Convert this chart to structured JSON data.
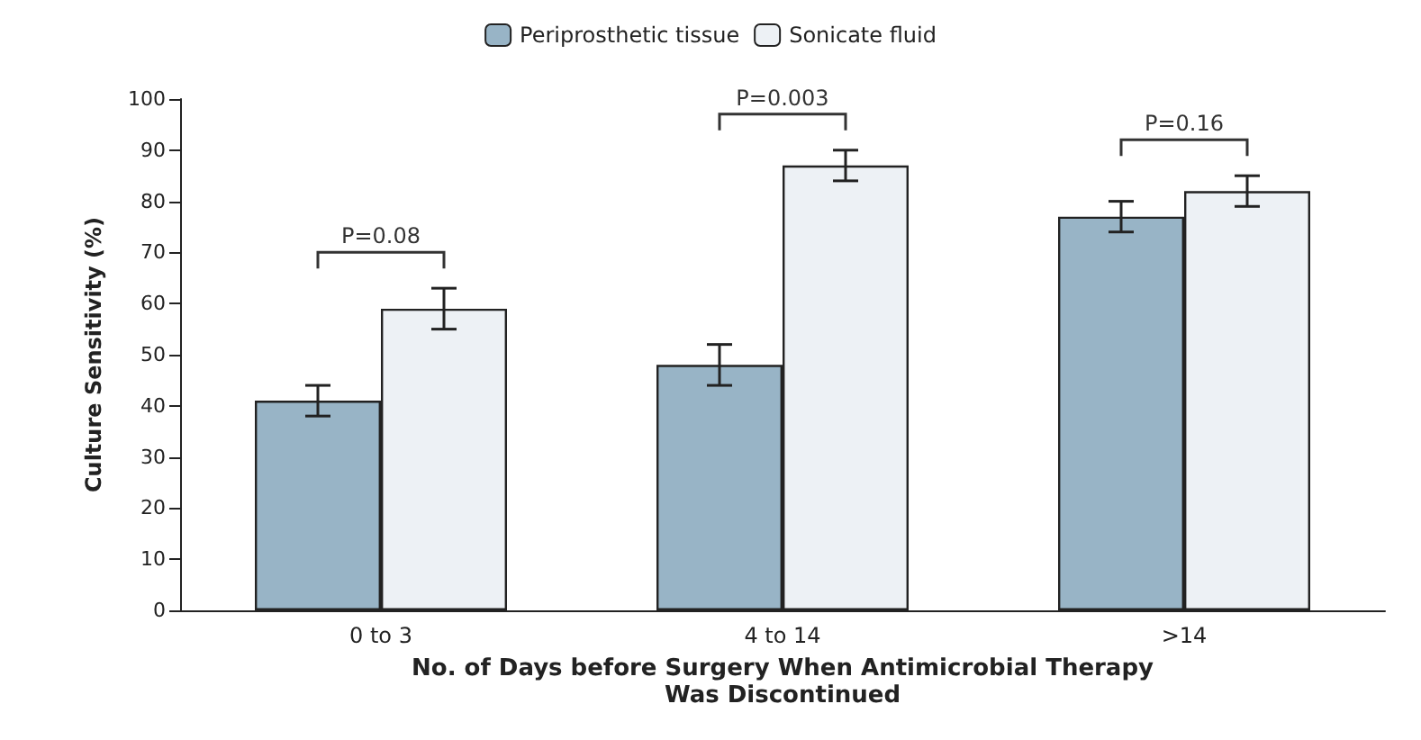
{
  "chart_data": {
    "type": "bar",
    "xlabel": "No. of Days before Surgery When Antimicrobial Therapy\nWas Discontinued",
    "ylabel": "Culture Sensitivity (%)",
    "categories": [
      "0 to 3",
      "4 to 14",
      ">14"
    ],
    "series": [
      {
        "name": "Periprosthetic tissue",
        "color": "#98b4c6",
        "values": [
          41,
          48,
          77
        ],
        "errors": [
          3,
          4,
          3
        ]
      },
      {
        "name": "Sonicate fluid",
        "color": "#edf1f5",
        "values": [
          59,
          87,
          82
        ],
        "errors": [
          4,
          3,
          3
        ]
      }
    ],
    "ylim": [
      0,
      100
    ],
    "yticks": [
      0,
      10,
      20,
      30,
      40,
      50,
      60,
      70,
      80,
      90,
      100
    ],
    "grid": false,
    "legend": "top",
    "annotations": [
      "P=0.08",
      "P=0.003",
      "P=0.16"
    ]
  }
}
